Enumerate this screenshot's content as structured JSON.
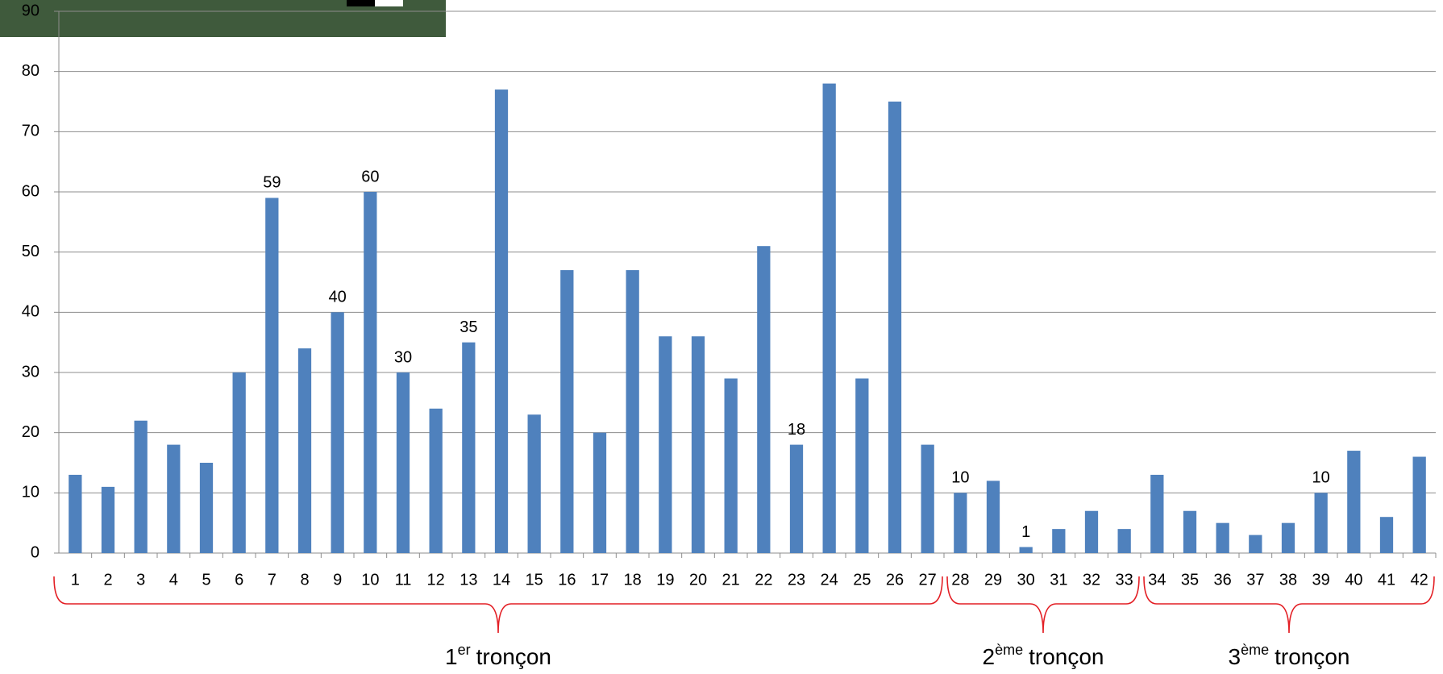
{
  "chart_data": {
    "type": "bar",
    "categories": [
      "1",
      "2",
      "3",
      "4",
      "5",
      "6",
      "7",
      "8",
      "9",
      "10",
      "11",
      "12",
      "13",
      "14",
      "15",
      "16",
      "17",
      "18",
      "19",
      "20",
      "21",
      "22",
      "23",
      "24",
      "25",
      "26",
      "27",
      "28",
      "29",
      "30",
      "31",
      "32",
      "33",
      "34",
      "35",
      "36",
      "37",
      "38",
      "39",
      "40",
      "41",
      "42"
    ],
    "values": [
      13,
      11,
      22,
      18,
      15,
      30,
      59,
      34,
      40,
      60,
      30,
      24,
      35,
      77,
      23,
      47,
      20,
      47,
      36,
      36,
      29,
      51,
      18,
      78,
      29,
      75,
      18,
      10,
      12,
      1,
      4,
      7,
      4,
      13,
      7,
      5,
      3,
      5,
      10,
      17,
      6,
      16
    ],
    "value_labels": [
      null,
      null,
      null,
      null,
      null,
      null,
      "59",
      null,
      "40",
      "60",
      "30",
      null,
      "35",
      null,
      null,
      null,
      null,
      null,
      null,
      null,
      null,
      null,
      "18",
      null,
      null,
      null,
      null,
      "10",
      null,
      "1",
      null,
      null,
      null,
      null,
      null,
      null,
      null,
      null,
      "10",
      null,
      null,
      null
    ],
    "color": "#4f81bd",
    "ylim": [
      0,
      90
    ],
    "yticks": [
      0,
      10,
      20,
      30,
      40,
      50,
      60,
      70,
      80,
      90
    ],
    "grid": true,
    "groups": [
      {
        "number": "1",
        "sup": "er",
        "text": "tronçon",
        "span": [
          0,
          26
        ]
      },
      {
        "number": "2",
        "sup": "ème",
        "text": "tronçon",
        "span": [
          27,
          32
        ]
      },
      {
        "number": "3",
        "sup": "ème",
        "text": "tronçon",
        "span": [
          33,
          41
        ]
      }
    ],
    "group_color": "#e31e24"
  }
}
